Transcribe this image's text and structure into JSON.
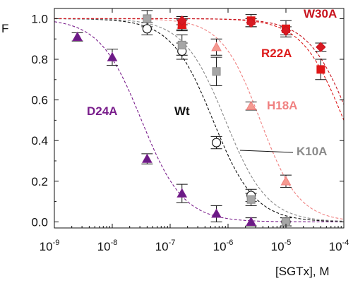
{
  "chart_data": {
    "type": "scatter",
    "title": "",
    "ylabel": "F",
    "xlabel": "[SGTx], M",
    "xscale": "log",
    "xlim": [
      1e-09,
      0.0001
    ],
    "ylim": [
      -0.03,
      1.05
    ],
    "grid": false,
    "x_ticks": [
      {
        "base": "10",
        "exp": "-9",
        "value": 1e-09
      },
      {
        "base": "10",
        "exp": "-8",
        "value": 1e-08
      },
      {
        "base": "10",
        "exp": "-7",
        "value": 1e-07
      },
      {
        "base": "10",
        "exp": "-6",
        "value": 1e-06
      },
      {
        "base": "10",
        "exp": "-5",
        "value": 1e-05
      },
      {
        "base": "10",
        "exp": "-4",
        "value": 0.0001
      }
    ],
    "y_ticks": [
      "0.0",
      "0.2",
      "0.4",
      "0.6",
      "0.8",
      "1.0"
    ],
    "y_tick_values": [
      0,
      0.2,
      0.4,
      0.6,
      0.8,
      1.0
    ],
    "series": [
      {
        "name": "D24A",
        "color": "#7a1e8c",
        "marker": "triangle",
        "fill": "#6a1b86",
        "curve_ic50": 3.2e-08,
        "curve_hill": 1.2,
        "points": [
          {
            "x": 2.5e-09,
            "y": 0.91,
            "err": 0.02
          },
          {
            "x": 1e-08,
            "y": 0.81,
            "err": 0.04
          },
          {
            "x": 4e-08,
            "y": 0.31,
            "err": 0.025
          },
          {
            "x": 1.6e-07,
            "y": 0.14,
            "err": 0.045
          },
          {
            "x": 6.3e-07,
            "y": 0.04,
            "err": 0.04
          },
          {
            "x": 2.5e-06,
            "y": 0.0,
            "err": 0.02
          }
        ]
      },
      {
        "name": "Wt",
        "color": "#111111",
        "marker": "circle",
        "fill": "#ffffff",
        "curve_ic50": 5.5e-07,
        "curve_hill": 1.2,
        "points": [
          {
            "x": 4e-08,
            "y": 0.95,
            "err": 0.03
          },
          {
            "x": 1.6e-07,
            "y": 0.84,
            "err": 0.04
          },
          {
            "x": 6.3e-07,
            "y": 0.39,
            "err": 0.03
          },
          {
            "x": 2.5e-06,
            "y": 0.13,
            "err": 0.03
          },
          {
            "x": 1e-05,
            "y": 0.0,
            "err": 0.02
          }
        ]
      },
      {
        "name": "K10A",
        "color": "#8a8a8a",
        "marker": "square",
        "fill": "#a6a6a6",
        "curve_ic50": 9e-07,
        "curve_hill": 1.2,
        "points": [
          {
            "x": 4e-08,
            "y": 1.0,
            "err": 0.04
          },
          {
            "x": 1.6e-07,
            "y": 0.87,
            "err": 0.05
          },
          {
            "x": 6.3e-07,
            "y": 0.74,
            "err": 0.07
          },
          {
            "x": 2.5e-06,
            "y": 0.11,
            "err": 0.03
          },
          {
            "x": 1e-05,
            "y": 0.0,
            "err": 0.02
          }
        ]
      },
      {
        "name": "H18A",
        "color": "#f08080",
        "marker": "triangle",
        "fill": "#f59a90",
        "curve_ic50": 3.6e-06,
        "curve_hill": 1.3,
        "points": [
          {
            "x": 1.6e-07,
            "y": 0.97,
            "err": 0.025
          },
          {
            "x": 6.3e-07,
            "y": 0.86,
            "err": 0.04
          },
          {
            "x": 2.5e-06,
            "y": 0.57,
            "err": 0.02
          },
          {
            "x": 1e-05,
            "y": 0.2,
            "err": 0.03
          }
        ]
      },
      {
        "name": "R22A",
        "color": "#dd1a1a",
        "marker": "square",
        "fill": "#e01616",
        "curve_ic50": 0.0001,
        "curve_hill": 1.2,
        "points": [
          {
            "x": 1.6e-07,
            "y": 0.97,
            "err": 0.03
          },
          {
            "x": 2.5e-06,
            "y": 0.99,
            "err": 0.03
          },
          {
            "x": 1e-05,
            "y": 0.95,
            "err": 0.04
          },
          {
            "x": 4e-05,
            "y": 0.75,
            "err": 0.05
          }
        ]
      },
      {
        "name": "W30A",
        "color": "#c8141e",
        "marker": "diamond",
        "fill": "#d81a22",
        "curve_ic50": 0.00013,
        "curve_hill": 1.2,
        "points": [
          {
            "x": 1.6e-07,
            "y": 0.99,
            "err": 0.02
          },
          {
            "x": 2.5e-06,
            "y": 0.98,
            "err": 0.02
          },
          {
            "x": 1e-05,
            "y": 0.94,
            "err": 0.02
          },
          {
            "x": 4e-05,
            "y": 0.86,
            "err": 0.02
          }
        ]
      }
    ],
    "annotations": [
      {
        "text": "D24A",
        "series": "D24A",
        "color": "#7a1e8c"
      },
      {
        "text": "Wt",
        "series": "Wt",
        "color": "#111111"
      },
      {
        "text": "K10A",
        "series": "K10A",
        "color": "#8a8a8a"
      },
      {
        "text": "H18A",
        "series": "H18A",
        "color": "#f08080"
      },
      {
        "text": "R22A",
        "series": "R22A",
        "color": "#dd1a1a"
      },
      {
        "text": "W30A",
        "series": "W30A",
        "color": "#c8141e"
      }
    ]
  }
}
